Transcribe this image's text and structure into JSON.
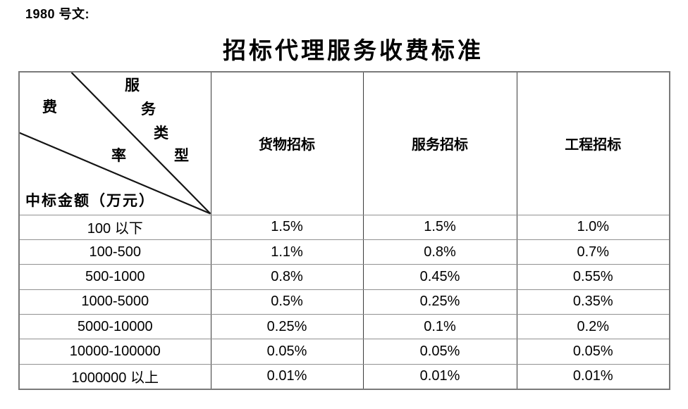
{
  "page": {
    "doc_ref": "1980 号文:",
    "title": "招标代理服务收费标准"
  },
  "table": {
    "corner": {
      "fee_label": "费率",
      "service_label": "服务类型",
      "fee_chars": [
        "费",
        "率"
      ],
      "service_chars": [
        "服",
        "务",
        "类",
        "型"
      ],
      "row_axis_label": "中标金额（万元）"
    },
    "columns": [
      "货物招标",
      "服务招标",
      "工程招标"
    ],
    "rows": [
      {
        "range": "100 以下",
        "values": [
          "1.5%",
          "1.5%",
          "1.0%"
        ]
      },
      {
        "range": "100-500",
        "values": [
          "1.1%",
          "0.8%",
          "0.7%"
        ]
      },
      {
        "range": "500-1000",
        "values": [
          "0.8%",
          "0.45%",
          "0.55%"
        ]
      },
      {
        "range": "1000-5000",
        "values": [
          "0.5%",
          "0.25%",
          "0.35%"
        ]
      },
      {
        "range": "5000-10000",
        "values": [
          "0.25%",
          "0.1%",
          "0.2%"
        ]
      },
      {
        "range": "10000-100000",
        "values": [
          "0.05%",
          "0.05%",
          "0.05%"
        ]
      },
      {
        "range": "1000000 以上",
        "values": [
          "0.01%",
          "0.01%",
          "0.01%"
        ]
      }
    ]
  },
  "colors": {
    "text": "#000000",
    "table_outer_border": "#7a7a7a",
    "table_inner_vertical": "#3a3a3a",
    "table_inner_horizontal": "#909090",
    "diagonal_line": "#141414",
    "background": "#ffffff"
  }
}
